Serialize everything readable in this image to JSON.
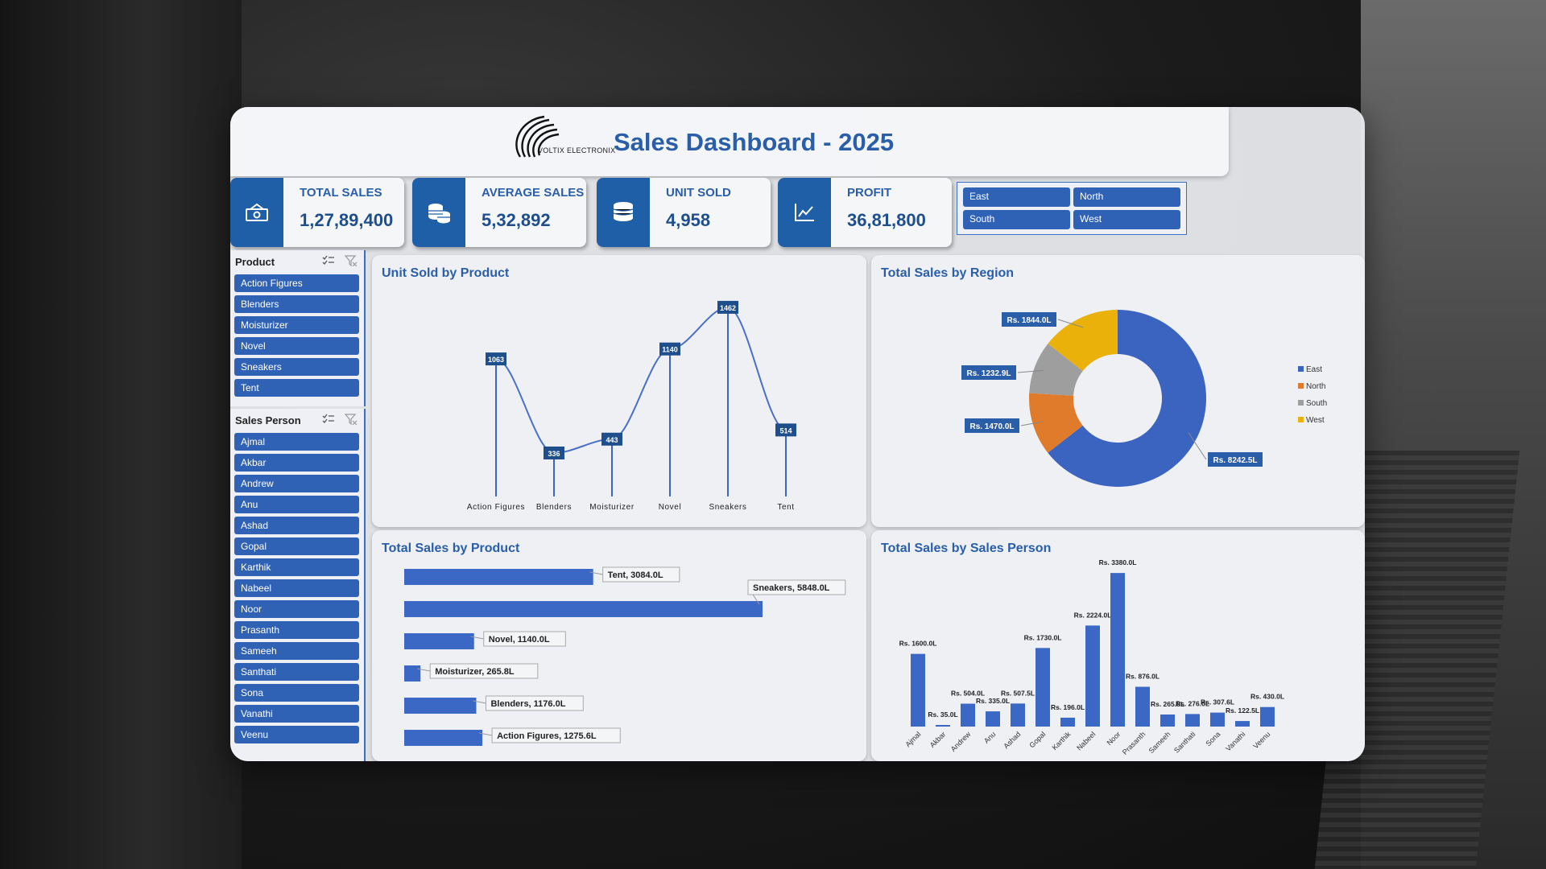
{
  "dashboard": {
    "title": "Sales Dashboard - 2025",
    "logo_text": "VOLTIX ELECTRONIX",
    "kpis": [
      {
        "label": "TOTAL SALES",
        "value": "1,27,89,400",
        "icon": "cash-icon"
      },
      {
        "label": "AVERAGE SALES",
        "value": "5,32,892",
        "icon": "coins-icon"
      },
      {
        "label": "UNIT SOLD",
        "value": "4,958",
        "icon": "stack-icon"
      },
      {
        "label": "PROFIT",
        "value": "36,81,800",
        "icon": "trend-chart-icon"
      }
    ],
    "region_slicer": [
      "East",
      "North",
      "South",
      "West"
    ],
    "product_slicer": {
      "title": "Product",
      "items": [
        "Action Figures",
        "Blenders",
        "Moisturizer",
        "Novel",
        "Sneakers",
        "Tent"
      ]
    },
    "person_slicer": {
      "title": "Sales Person",
      "items": [
        "Ajmal",
        "Akbar",
        "Andrew",
        "Anu",
        "Ashad",
        "Gopal",
        "Karthik",
        "Nabeel",
        "Noor",
        "Prasanth",
        "Sameeh",
        "Santhati",
        "Sona",
        "Vanathi",
        "Veenu"
      ]
    },
    "colors": {
      "accent": "#2f62b5",
      "title": "#2a5ea8",
      "east": "#3b63c0",
      "north": "#e07b2b",
      "south": "#9e9e9e",
      "west": "#e9b10a"
    }
  },
  "chart_data": [
    {
      "type": "line",
      "title": "Unit Sold by Product",
      "categories": [
        "Action Figures",
        "Blenders",
        "Moisturizer",
        "Novel",
        "Sneakers",
        "Tent"
      ],
      "values": [
        1063,
        336,
        443,
        1140,
        1462,
        514
      ],
      "ylim": [
        0,
        1600
      ]
    },
    {
      "type": "pie",
      "title": "Total Sales by Region",
      "labels": [
        "East",
        "North",
        "South",
        "West"
      ],
      "values": [
        8242.5,
        1470.0,
        1232.9,
        1844.0
      ],
      "data_labels": [
        "Rs. 8242.5L",
        "Rs. 1470.0L",
        "Rs. 1232.9L",
        "Rs. 1844.0L"
      ],
      "legend": "right"
    },
    {
      "type": "bar",
      "title": "Total Sales by Product",
      "orientation": "horizontal",
      "categories": [
        "Tent",
        "Sneakers",
        "Novel",
        "Moisturizer",
        "Blenders",
        "Action Figures"
      ],
      "values": [
        3084.0,
        5848.0,
        1140.0,
        265.8,
        1176.0,
        1275.6
      ],
      "data_labels": [
        "Tent, 3084.0L",
        "Sneakers, 5848.0L",
        "Novel, 1140.0L",
        "Moisturizer, 265.8L",
        "Blenders, 1176.0L",
        "Action Figures, 1275.6L"
      ]
    },
    {
      "type": "bar",
      "title": "Total Sales by Sales Person",
      "categories": [
        "Ajmal",
        "Akbar",
        "Andrew",
        "Anu",
        "Ashad",
        "Gopal",
        "Karthik",
        "Nabeel",
        "Noor",
        "Prasanth",
        "Sameeh",
        "Santhati",
        "Sona",
        "Vanathi",
        "Veenu"
      ],
      "values": [
        1600.0,
        35.0,
        504.0,
        335.0,
        507.5,
        1730.0,
        196.0,
        2224.0,
        3380.0,
        876.0,
        265.8,
        276.0,
        307.6,
        122.5,
        430.0
      ],
      "data_labels": [
        "Rs. 1600.0L",
        "Rs. 35.0L",
        "Rs. 504.0L",
        "Rs. 335.0L",
        "Rs. 507.5L",
        "Rs. 1730.0L",
        "Rs. 196.0L",
        "Rs. 2224.0L",
        "Rs. 3380.0L",
        "Rs. 876.0L",
        "Rs. 265.8L",
        "Rs. 276.0L",
        "Rs. 307.6L",
        "Rs. 122.5L",
        "Rs. 430.0L"
      ],
      "ylim": [
        0,
        3400
      ]
    }
  ]
}
